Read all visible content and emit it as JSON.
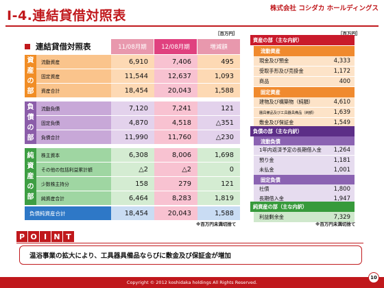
{
  "header": {
    "title": "Ⅰ-4.連結貸借対照表",
    "company": "株式会社 コシダカ ホールディングス"
  },
  "unit_label": "［百万円］",
  "table": {
    "heading": "連結貸借対照表",
    "columns": [
      "11/08月期",
      "12/08月期",
      "増減額"
    ],
    "sections": [
      {
        "label": "資産の部",
        "rows": [
          {
            "label": "流動資産",
            "values": [
              "6,910",
              "7,406",
              "495"
            ]
          },
          {
            "label": "固定資産",
            "values": [
              "11,544",
              "12,637",
              "1,093"
            ]
          },
          {
            "label": "資産合計",
            "values": [
              "18,454",
              "20,043",
              "1,588"
            ]
          }
        ]
      },
      {
        "label": "負債の部",
        "rows": [
          {
            "label": "流動負債",
            "values": [
              "7,120",
              "7,241",
              "121"
            ]
          },
          {
            "label": "固定負債",
            "values": [
              "4,870",
              "4,518",
              "△351"
            ]
          },
          {
            "label": "負債合計",
            "values": [
              "11,990",
              "11,760",
              "△230"
            ]
          }
        ]
      },
      {
        "label": "純資産の部",
        "rows": [
          {
            "label": "株主資本",
            "values": [
              "6,308",
              "8,006",
              "1,698"
            ]
          },
          {
            "label": "その他の包括利益累計額",
            "values": [
              "△2",
              "△2",
              "0"
            ]
          },
          {
            "label": "少数株主持分",
            "values": [
              "158",
              "279",
              "121"
            ]
          },
          {
            "label": "純資産合計",
            "values": [
              "6,464",
              "8,283",
              "1,819"
            ]
          }
        ]
      }
    ],
    "total": {
      "label": "負債純資産合計",
      "values": [
        "18,454",
        "20,043",
        "1,588"
      ]
    },
    "note": "※百万円未満切捨て"
  },
  "detail": {
    "asset_title": "資産の部（主な内訳）",
    "current_assets": "流動資産",
    "current_asset_items": [
      {
        "name": "現金及び預金",
        "value": "4,333"
      },
      {
        "name": "受取手形及び売掛金",
        "value": "1,172"
      },
      {
        "name": "商品",
        "value": "400"
      }
    ],
    "fixed_assets": "固定資産",
    "fixed_asset_items": [
      {
        "name": "建物及び構築物（純額）",
        "value": "4,610"
      },
      {
        "name": "器具備品及び工具器具備品（純額）",
        "value": "1,639"
      },
      {
        "name": "敷金及び保証金",
        "value": "1,549"
      }
    ],
    "liab_title": "負債の部（主な内訳）",
    "current_liab": "流動負債",
    "current_liab_items": [
      {
        "name": "1年内返済予定の長期借入金",
        "value": "1,264"
      },
      {
        "name": "預り金",
        "value": "1,181"
      },
      {
        "name": "未払金",
        "value": "1,001"
      }
    ],
    "fixed_liab": "固定負債",
    "fixed_liab_items": [
      {
        "name": "社債",
        "value": "1,800"
      },
      {
        "name": "長期借入金",
        "value": "1,947"
      }
    ],
    "equity_title": "純資産の部（主な内訳）",
    "equity_items": [
      {
        "name": "利益剰余金",
        "value": "7,329"
      }
    ],
    "note": "※百万円未満切捨て"
  },
  "point": {
    "tag": [
      "P",
      "O",
      "I",
      "N",
      "T"
    ],
    "text": "温浴事業の拡大により、工具器具備品ならびに敷金及び保証金が増加"
  },
  "footer": {
    "copyright": "Copyright © 2012 koshidaka holdings All Rights Reserved.",
    "page": "10"
  }
}
